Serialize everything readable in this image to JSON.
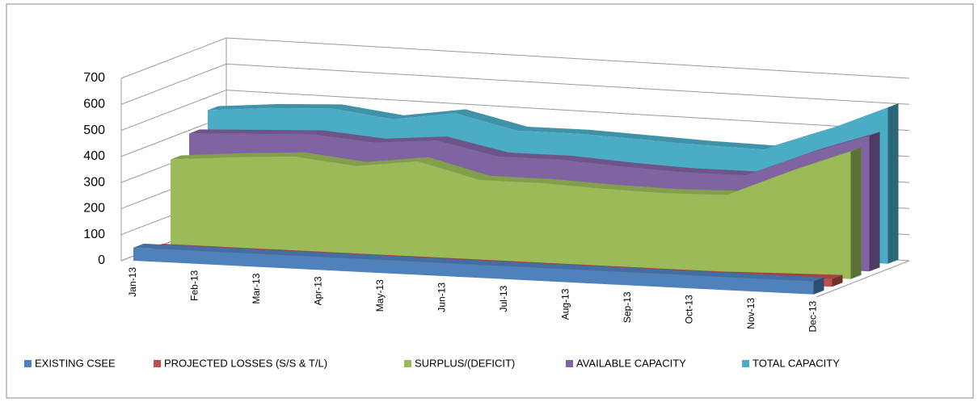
{
  "chart_data": {
    "type": "area3d",
    "categories": [
      "Jan-13",
      "Feb-13",
      "Mar-13",
      "Apr-13",
      "May-13",
      "Jun-13",
      "Jul-13",
      "Aug-13",
      "Sep-13",
      "Oct-13",
      "Nov-13",
      "Dec-13"
    ],
    "series": [
      {
        "name": "EXISTING CSEE",
        "color": "#4f81bd",
        "values": [
          50,
          50,
          50,
          50,
          50,
          50,
          50,
          50,
          50,
          50,
          50,
          50
        ]
      },
      {
        "name": "PROJECTED LOSSES (S/S & T/L)",
        "color": "#c0504d",
        "values": [
          20,
          20,
          20,
          20,
          20,
          20,
          20,
          20,
          20,
          20,
          25,
          30
        ]
      },
      {
        "name": "SURPLUS/(DEFICIT)",
        "color": "#9bbb59",
        "values": [
          330,
          350,
          365,
          340,
          370,
          310,
          310,
          300,
          295,
          300,
          400,
          490
        ]
      },
      {
        "name": "AVAILABLE CAPACITY",
        "color": "#8064a2",
        "values": [
          400,
          410,
          420,
          400,
          420,
          370,
          370,
          355,
          345,
          345,
          440,
          520
        ]
      },
      {
        "name": "TOTAL CAPACITY",
        "color": "#4bacc6",
        "values": [
          460,
          480,
          490,
          460,
          495,
          440,
          440,
          430,
          420,
          415,
          500,
          600
        ]
      }
    ],
    "ylim": [
      0,
      700
    ],
    "yticks": [
      0,
      100,
      200,
      300,
      400,
      500,
      600,
      700
    ],
    "grid": true,
    "legend": "bottom"
  }
}
